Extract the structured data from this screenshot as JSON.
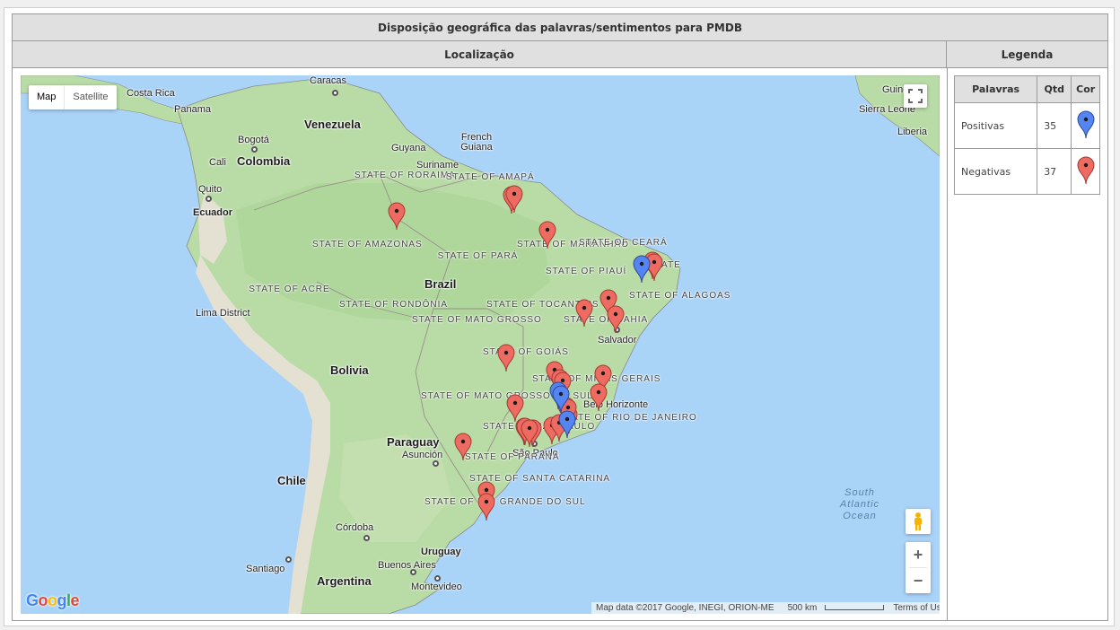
{
  "title": "Disposição geográfica das palavras/sentimentos para PMDB",
  "location_header": "Localização",
  "legend_header": "Legenda",
  "map": {
    "type_buttons": {
      "map": "Map",
      "satellite": "Satellite",
      "active": "Map"
    },
    "zoom_in": "+",
    "zoom_out": "−",
    "google_logo": "Google",
    "attribution": "Map data ©2017 Google, INEGI, ORION-ME",
    "scale": "500 km",
    "terms": "Terms of Use",
    "colors": {
      "ocean": "#aad3f8",
      "land": "#b9dca6",
      "mountain": "#e8e4d8",
      "positive": "#5485f0",
      "negative": "#ee6b61"
    },
    "countries": [
      "Costa Rica",
      "Panama",
      "Venezuela",
      "Guyana",
      "Suriname",
      "French Guiana",
      "Colombia",
      "Ecuador",
      "Brazil",
      "Bolivia",
      "Paraguay",
      "Chile",
      "Argentina",
      "Uruguay",
      "Sierra Leone",
      "Liberia",
      "Guinea"
    ],
    "cities": [
      "Caracas",
      "Bogotá",
      "Cali",
      "Quito",
      "Lima District",
      "Salvador",
      "Belo Horizonte",
      "São Paulo",
      "Rio de Janeiro",
      "Asunción",
      "Córdoba",
      "Santiago",
      "Buenos Aires",
      "Montevideo"
    ],
    "states": [
      "STATE OF RORAIMA",
      "STATE OF AMAPÁ",
      "STATE OF AMAZONAS",
      "STATE OF PARÁ",
      "STATE OF MARANHÃO",
      "STATE OF CEARÁ",
      "STATE OF PIAUÍ",
      "STATE OF PARAÍBA",
      "STATE OF ALAGOAS",
      "STATE OF ACRE",
      "STATE OF RONDÔNIA",
      "STATE OF TOCANTINS",
      "STATE OF BAHIA",
      "STATE OF MATO GROSSO",
      "STATE OF GOIÁS",
      "STATE OF MINAS GERAIS",
      "STATE OF MATO GROSSO DO SUL",
      "STATE OF SÃO PAULO",
      "STATE OF RIO DE JANEIRO",
      "STATE OF PARANÁ",
      "STATE OF SANTA CATARINA",
      "STATE OF RIO GRANDE DO SUL"
    ],
    "ocean_label": "South Atlantic Ocean",
    "markers_visible": {
      "positive": 4,
      "negative": 28
    }
  },
  "legend": {
    "columns": [
      "Palavras",
      "Qtd",
      "Cor"
    ],
    "rows": [
      {
        "label": "Positivas",
        "qtd": "35",
        "color": "blue"
      },
      {
        "label": "Negativas",
        "qtd": "37",
        "color": "red"
      }
    ]
  }
}
